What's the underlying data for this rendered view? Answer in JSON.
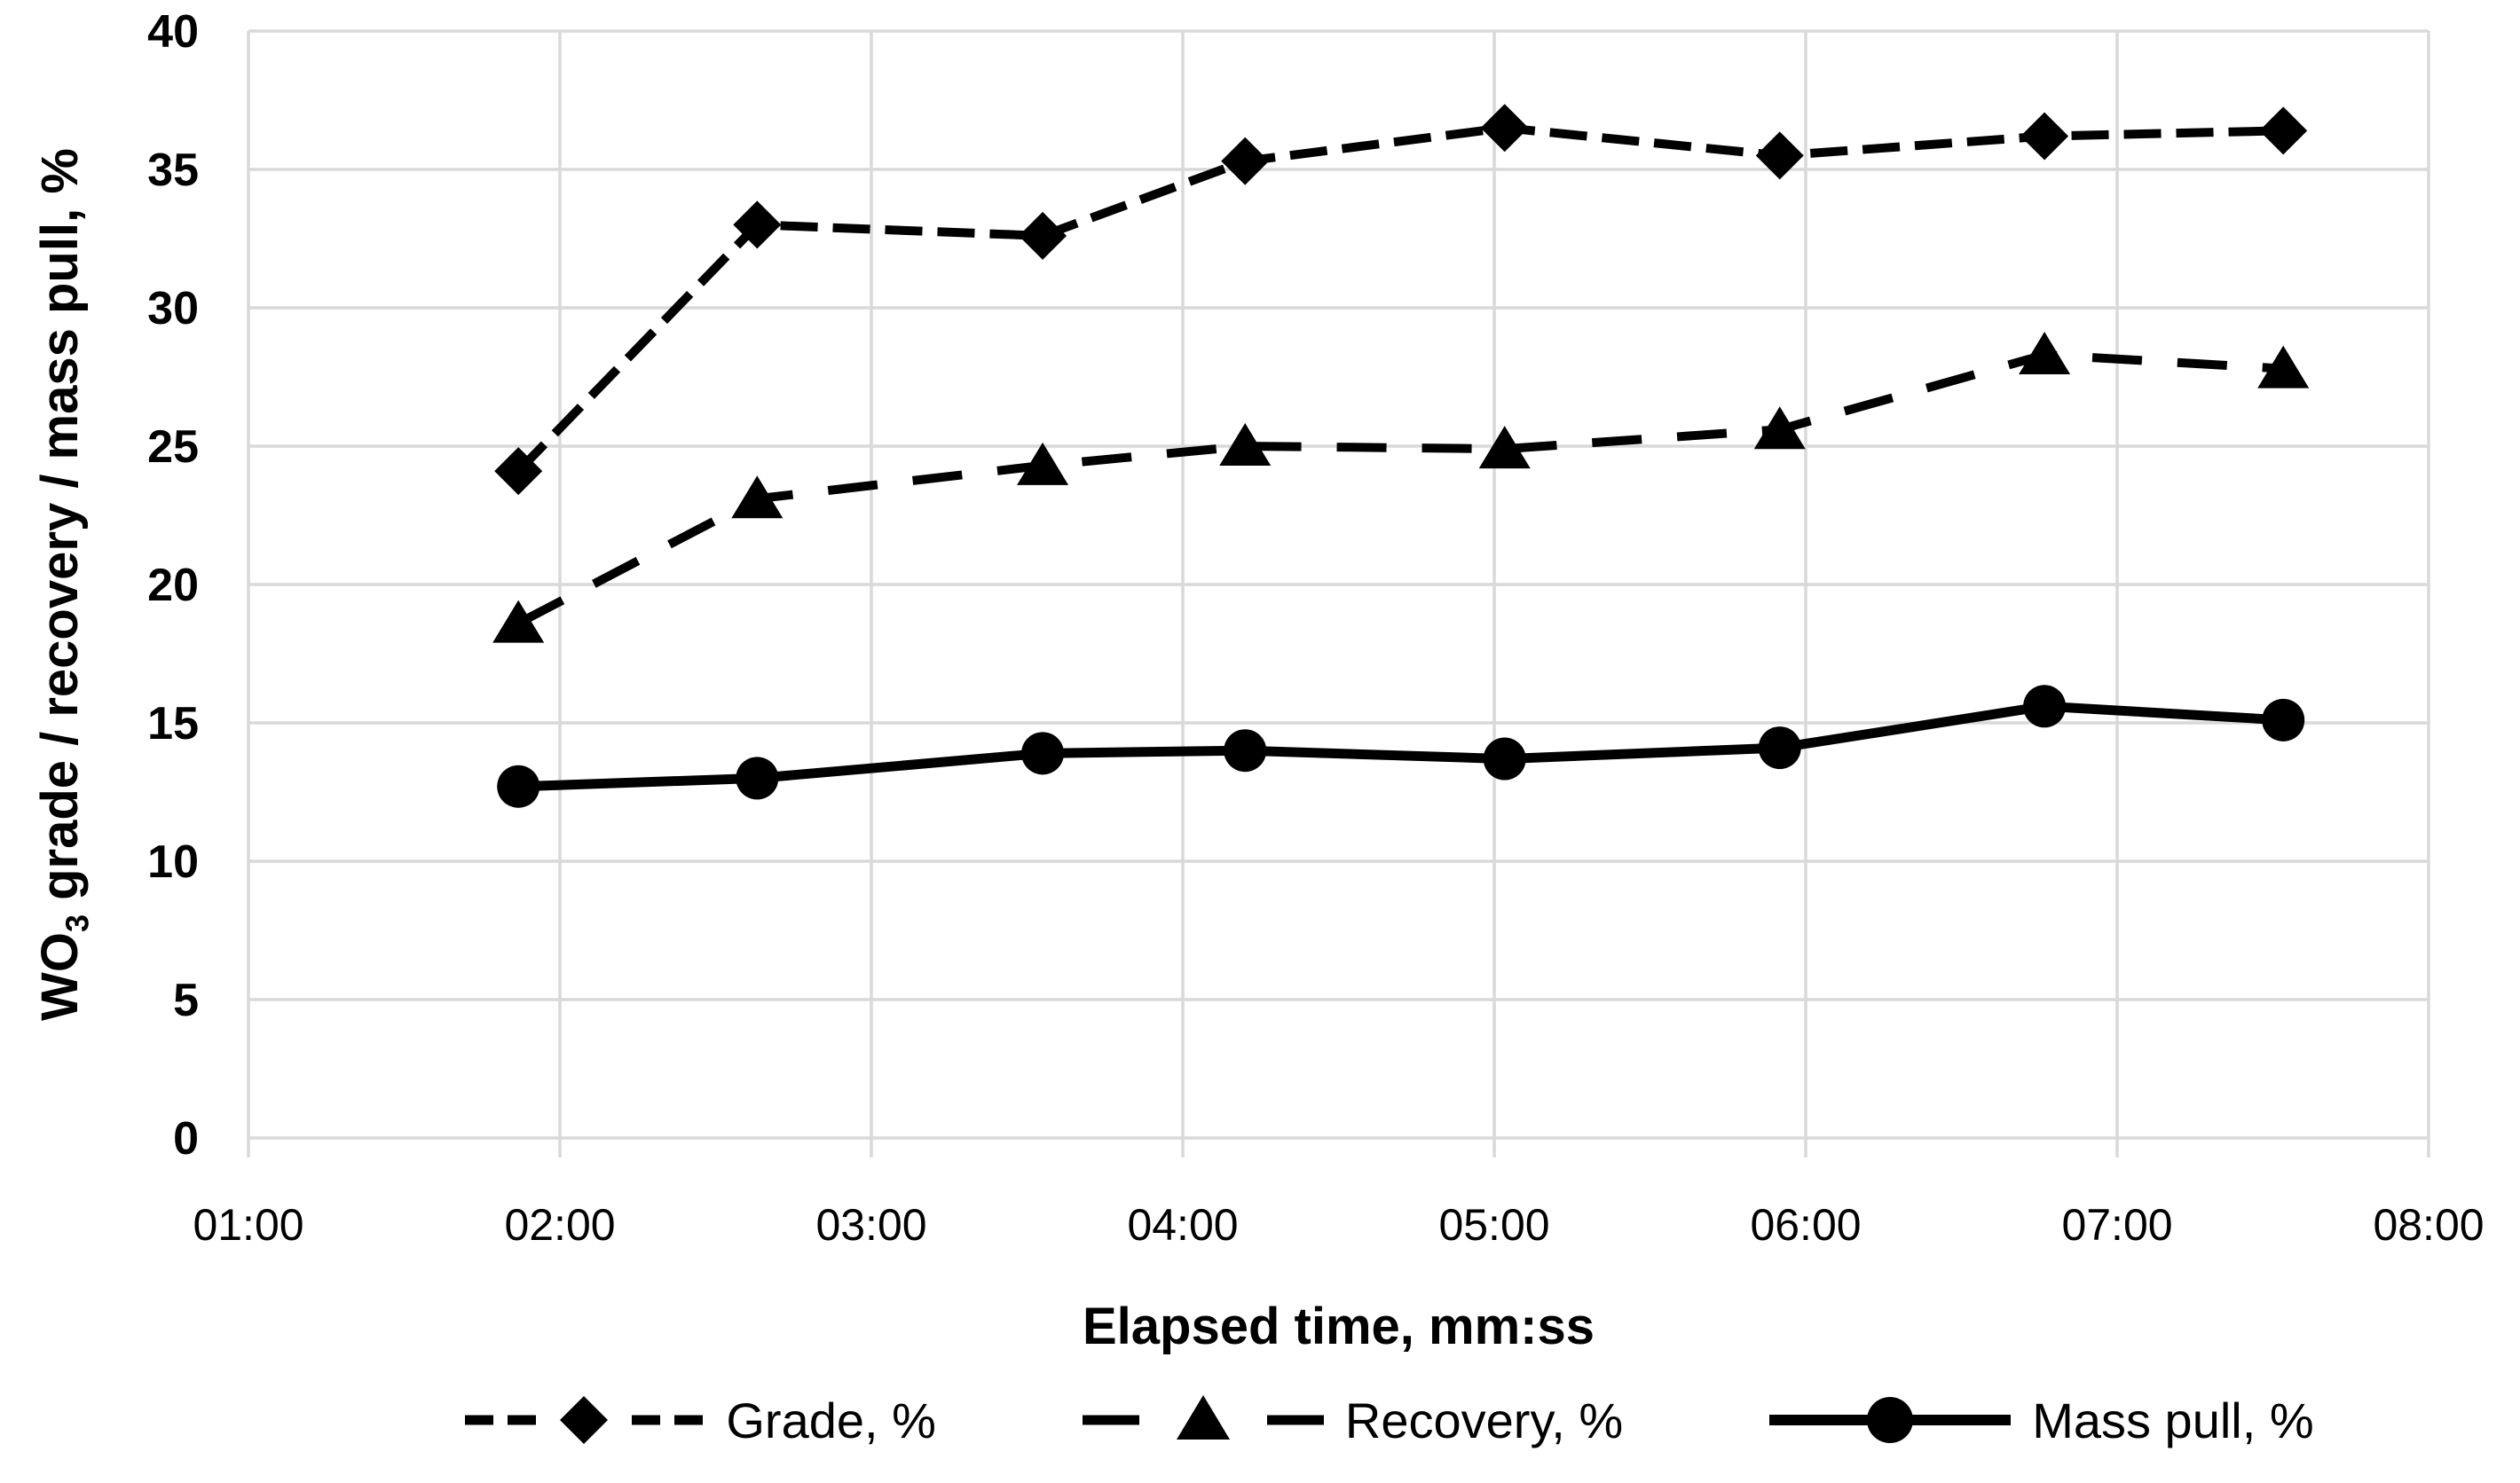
{
  "chart_data": {
    "type": "line",
    "title": "",
    "xlabel": "Elapsed time, mm:ss",
    "ylabel_prefix": "WO",
    "ylabel_sub": "3",
    "ylabel_suffix": " grade / recovery / mass pull, %",
    "ylabel_full": "WO3 grade / recovery / mass pull, %",
    "x_tick_labels": [
      "01:00",
      "02:00",
      "03:00",
      "04:00",
      "05:00",
      "06:00",
      "07:00",
      "08:00"
    ],
    "x_range_seconds": [
      60,
      480
    ],
    "y_ticks": [
      0,
      5,
      10,
      15,
      20,
      25,
      30,
      35,
      40
    ],
    "ylim": [
      0,
      40
    ],
    "grid": true,
    "legend_position": "bottom",
    "x_times": [
      "01:52",
      "02:38",
      "03:33",
      "04:12",
      "05:02",
      "05:55",
      "06:46",
      "07:32"
    ],
    "x_seconds": [
      112,
      158,
      213,
      252,
      302,
      355,
      406,
      452
    ],
    "series": [
      {
        "name": "Grade, %",
        "marker": "diamond",
        "line": "dashed",
        "values": [
          24.1,
          33.0,
          32.6,
          35.3,
          36.5,
          35.5,
          36.2,
          36.4
        ]
      },
      {
        "name": "Recovery, %",
        "marker": "triangle",
        "line": "long-dashed",
        "values": [
          18.6,
          23.1,
          24.3,
          25.0,
          24.9,
          25.6,
          28.3,
          27.8
        ]
      },
      {
        "name": "Mass pull, %",
        "marker": "circle",
        "line": "solid",
        "values": [
          12.7,
          13.0,
          13.9,
          14.0,
          13.7,
          14.1,
          15.6,
          15.1
        ]
      }
    ],
    "colors": {
      "series": "#000000",
      "gridline": "#d9d9d9",
      "background": "#ffffff",
      "text": "#000000"
    }
  }
}
